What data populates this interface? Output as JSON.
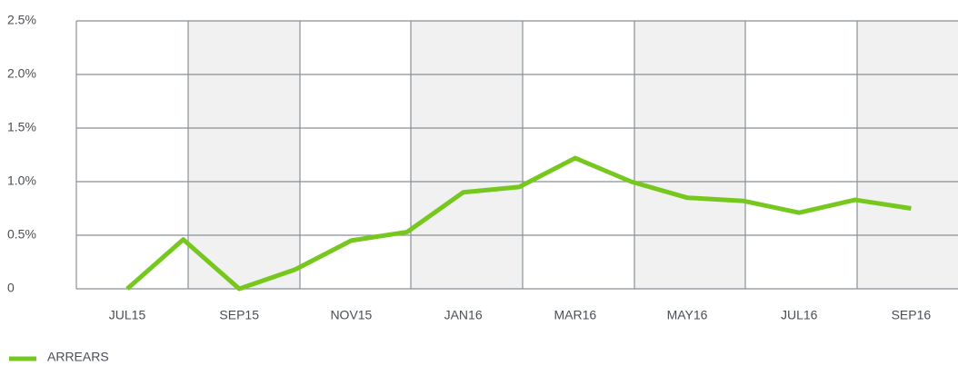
{
  "chart_data": {
    "type": "line",
    "categories": [
      "JUL15",
      null,
      "SEP15",
      null,
      "NOV15",
      null,
      "JAN16",
      null,
      "MAR16",
      null,
      "MAY16",
      null,
      "JUL16",
      null,
      "SEP16"
    ],
    "series": [
      {
        "name": "ARREARS",
        "color": "#76c81e",
        "values": [
          0,
          0.46,
          0,
          0.18,
          0.45,
          0.53,
          0.9,
          0.95,
          1.22,
          1.0,
          0.85,
          0.82,
          0.71,
          0.83,
          0.75
        ]
      }
    ],
    "ylim": [
      0,
      2.5
    ],
    "yticks": [
      0,
      {
        "value": 0.5,
        "label": "0.5%"
      },
      {
        "value": 1,
        "label": "1.0%"
      },
      {
        "value": 1.5,
        "label": "1.5%"
      },
      {
        "value": 2,
        "label": "2.0%"
      },
      {
        "value": 2.5,
        "label": "2.5%"
      }
    ],
    "grid": true
  }
}
